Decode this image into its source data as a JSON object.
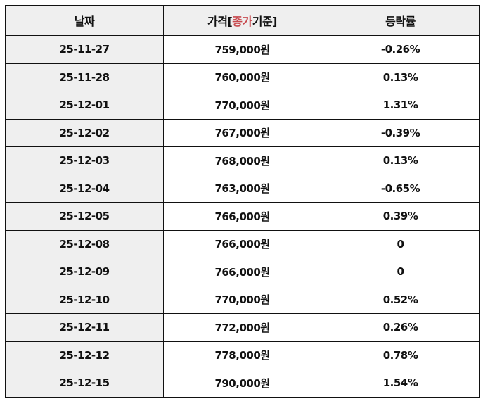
{
  "colors": {
    "price": "#b8434a",
    "header_accent": "#c84a4f",
    "header_bg": "#efefef",
    "date_bg": "#efefef",
    "border": "#111111"
  },
  "table": {
    "headers": {
      "date": "날짜",
      "price_prefix": "가격[",
      "price_accent": "종가",
      "price_suffix": "기준]",
      "change": "등락률"
    },
    "rows": [
      {
        "date": "25-11-27",
        "price": "759,000원",
        "change": "-0.26%"
      },
      {
        "date": "25-11-28",
        "price": "760,000원",
        "change": "0.13%"
      },
      {
        "date": "25-12-01",
        "price": "770,000원",
        "change": "1.31%"
      },
      {
        "date": "25-12-02",
        "price": "767,000원",
        "change": "-0.39%"
      },
      {
        "date": "25-12-03",
        "price": "768,000원",
        "change": "0.13%"
      },
      {
        "date": "25-12-04",
        "price": "763,000원",
        "change": "-0.65%"
      },
      {
        "date": "25-12-05",
        "price": "766,000원",
        "change": "0.39%"
      },
      {
        "date": "25-12-08",
        "price": "766,000원",
        "change": "0"
      },
      {
        "date": "25-12-09",
        "price": "766,000원",
        "change": "0"
      },
      {
        "date": "25-12-10",
        "price": "770,000원",
        "change": "0.52%"
      },
      {
        "date": "25-12-11",
        "price": "772,000원",
        "change": "0.26%"
      },
      {
        "date": "25-12-12",
        "price": "778,000원",
        "change": "0.78%"
      },
      {
        "date": "25-12-15",
        "price": "790,000원",
        "change": "1.54%"
      }
    ]
  }
}
